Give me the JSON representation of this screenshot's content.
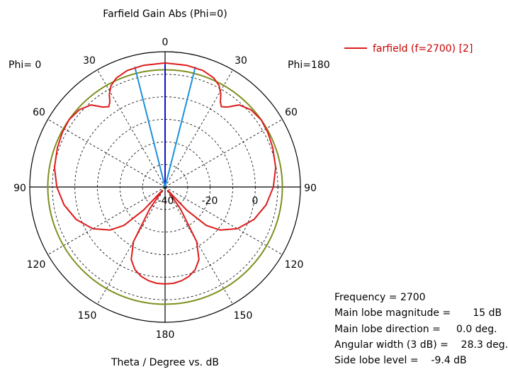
{
  "chart_data": {
    "type": "polar",
    "title": "Farfield Gain Abs (Phi=0)",
    "xlabel": "Theta / Degree vs. dB",
    "left_label": "Phi=  0",
    "right_label": "Phi=180",
    "angle_labels": {
      "top": "0",
      "upper_left": "30",
      "upper_right": "30",
      "left_60": "60",
      "right_60": "60",
      "left_90": "90",
      "right_90": "90",
      "left_120": "120",
      "right_120": "120",
      "left_150": "150",
      "right_150": "150",
      "bottom": "180"
    },
    "radial_labels": [
      "-40",
      "-20",
      "0"
    ],
    "radial_ticks": [
      -40,
      -20,
      0
    ],
    "radial_range": [
      -40,
      20
    ],
    "main_lobe_db": 15,
    "beamwidth_deg": 28.3,
    "series": [
      {
        "name": "farfield (f=2700) [2]",
        "color": "#dd1c1c",
        "points": [
          [
            0,
            15
          ],
          [
            10,
            14.8
          ],
          [
            18,
            14.3
          ],
          [
            24,
            13.0
          ],
          [
            28,
            11.0
          ],
          [
            31,
            8.0
          ],
          [
            33,
            5.0
          ],
          [
            35,
            3.5
          ],
          [
            38,
            5.0
          ],
          [
            42,
            9.0
          ],
          [
            48,
            11.2
          ],
          [
            55,
            12.0
          ],
          [
            62,
            11.6
          ],
          [
            70,
            10.8
          ],
          [
            80,
            9.8
          ],
          [
            90,
            8.0
          ],
          [
            100,
            5.5
          ],
          [
            110,
            2.0
          ],
          [
            120,
            -3.0
          ],
          [
            128,
            -9.0
          ],
          [
            133,
            -15.0
          ],
          [
            137,
            -26.0
          ],
          [
            140,
            -38.0
          ],
          [
            145,
            -28.0
          ],
          [
            150,
            -12.0
          ],
          [
            155,
            -4.5
          ],
          [
            160,
            -1.0
          ],
          [
            165,
            1.0
          ],
          [
            170,
            2.2
          ],
          [
            175,
            2.9
          ],
          [
            180,
            3.0
          ]
        ]
      }
    ],
    "reference_circle": {
      "value_db": 12,
      "color": "#7f8f1f"
    },
    "beam_lines": [
      {
        "angle_deg": 0,
        "value_db": 15,
        "color": "#1010c8"
      },
      {
        "angle_deg": -14.15,
        "value_db": 15,
        "color": "#1f8fdd"
      },
      {
        "angle_deg": 14.15,
        "value_db": 15,
        "color": "#1f8fdd"
      }
    ]
  },
  "info": {
    "frequency": "Frequency = 2700",
    "main_lobe_magnitude": "Main lobe magnitude =       15 dB",
    "main_lobe_direction": "Main lobe direction =     0.0 deg.",
    "angular_width": "Angular width (3 dB) =    28.3 deg.",
    "side_lobe_level": "Side lobe level =    -9.4 dB"
  }
}
